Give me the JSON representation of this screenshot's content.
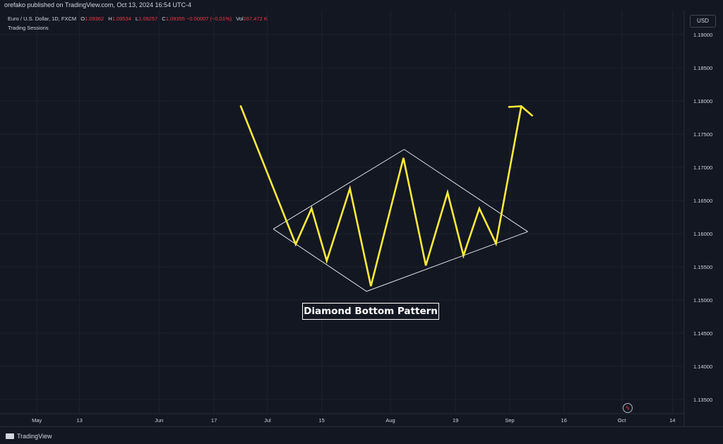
{
  "header": {
    "published_by": "orefako published on TradingView.com, Oct 13, 2024 16:54 UTC-4"
  },
  "legend": {
    "symbol": "Euro / U.S. Dollar, 1D, FXCM",
    "open_label": "O",
    "open_value": "1.09362",
    "high_label": "H",
    "high_value": "1.09534",
    "low_label": "L",
    "low_value": "1.09257",
    "close_label": "C",
    "close_value": "1.09355",
    "change": "−0.00007 (−0.01%)",
    "vol_label": "Vol",
    "vol_value": "167.472 K",
    "indicator": "Trading Sessions"
  },
  "currency_button": "USD",
  "annotation": "Diamond Bottom Pattern",
  "brand": "TradingView",
  "colors": {
    "background": "#131722",
    "grid": "#1e222d",
    "price_line": "#ffeb3b",
    "diamond": "#e0e3eb",
    "text": "#d1d4dc",
    "negative": "#f23645"
  },
  "chart_data": {
    "type": "line",
    "y_axis": {
      "side": "right",
      "range": [
        1.133,
        1.192
      ],
      "ticks": [
        "1.19000",
        "1.18500",
        "1.18000",
        "1.17500",
        "1.17000",
        "1.16500",
        "1.16000",
        "1.15500",
        "1.15000",
        "1.14500",
        "1.14000",
        "1.13500"
      ],
      "tick_values": [
        1.19,
        1.185,
        1.18,
        1.175,
        1.17,
        1.165,
        1.16,
        1.155,
        1.15,
        1.145,
        1.14,
        1.135
      ]
    },
    "x_axis": {
      "range": [
        0,
        1
      ],
      "ticks": [
        {
          "label": "May",
          "x": 0.051
        },
        {
          "label": "13",
          "x": 0.11
        },
        {
          "label": "Jun",
          "x": 0.22
        },
        {
          "label": "17",
          "x": 0.296
        },
        {
          "label": "Jul",
          "x": 0.37
        },
        {
          "label": "15",
          "x": 0.445
        },
        {
          "label": "Aug",
          "x": 0.54
        },
        {
          "label": "19",
          "x": 0.63
        },
        {
          "label": "Sep",
          "x": 0.705
        },
        {
          "label": "16",
          "x": 0.78
        },
        {
          "label": "Oct",
          "x": 0.86
        },
        {
          "label": "14",
          "x": 0.93
        }
      ]
    },
    "grid": true,
    "series": [
      {
        "kind": "zigzag",
        "points": [
          [
            0.333,
            1.1792
          ],
          [
            0.409,
            1.1584
          ],
          [
            0.431,
            1.1638
          ],
          [
            0.452,
            1.1559
          ],
          [
            0.484,
            1.1668
          ],
          [
            0.513,
            1.1521
          ],
          [
            0.558,
            1.1714
          ],
          [
            0.589,
            1.1552
          ],
          [
            0.619,
            1.1662
          ],
          [
            0.641,
            1.1567
          ],
          [
            0.663,
            1.1638
          ],
          [
            0.686,
            1.1585
          ],
          [
            0.721,
            1.1792
          ]
        ]
      }
    ],
    "diamond": {
      "points": [
        [
          0.378,
          1.1607
        ],
        [
          0.559,
          1.1727
        ],
        [
          0.73,
          1.1603
        ],
        [
          0.507,
          1.1513
        ]
      ]
    },
    "arrowhead": {
      "left": [
        0.704,
        1.1791
      ],
      "tip": [
        0.721,
        1.1792
      ],
      "right": [
        0.736,
        1.1778
      ]
    },
    "annotations": [
      "Diamond Bottom Pattern"
    ]
  }
}
